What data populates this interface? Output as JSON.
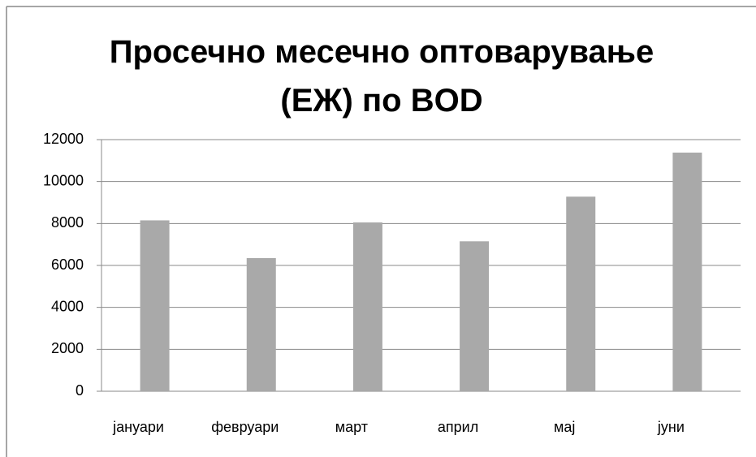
{
  "chart_data": {
    "type": "bar",
    "title": "Просечно месечно оптоварување (ЕЖ) по BOD",
    "categories": [
      "јануари",
      "февруари",
      "март",
      "април",
      "мај",
      "јуни"
    ],
    "values": [
      8150,
      6350,
      8050,
      7150,
      9280,
      11380
    ],
    "color": "#a9a9a9",
    "ylim": [
      0,
      12000
    ],
    "yticks": [
      0,
      2000,
      4000,
      6000,
      8000,
      10000,
      12000
    ],
    "grid": true
  }
}
